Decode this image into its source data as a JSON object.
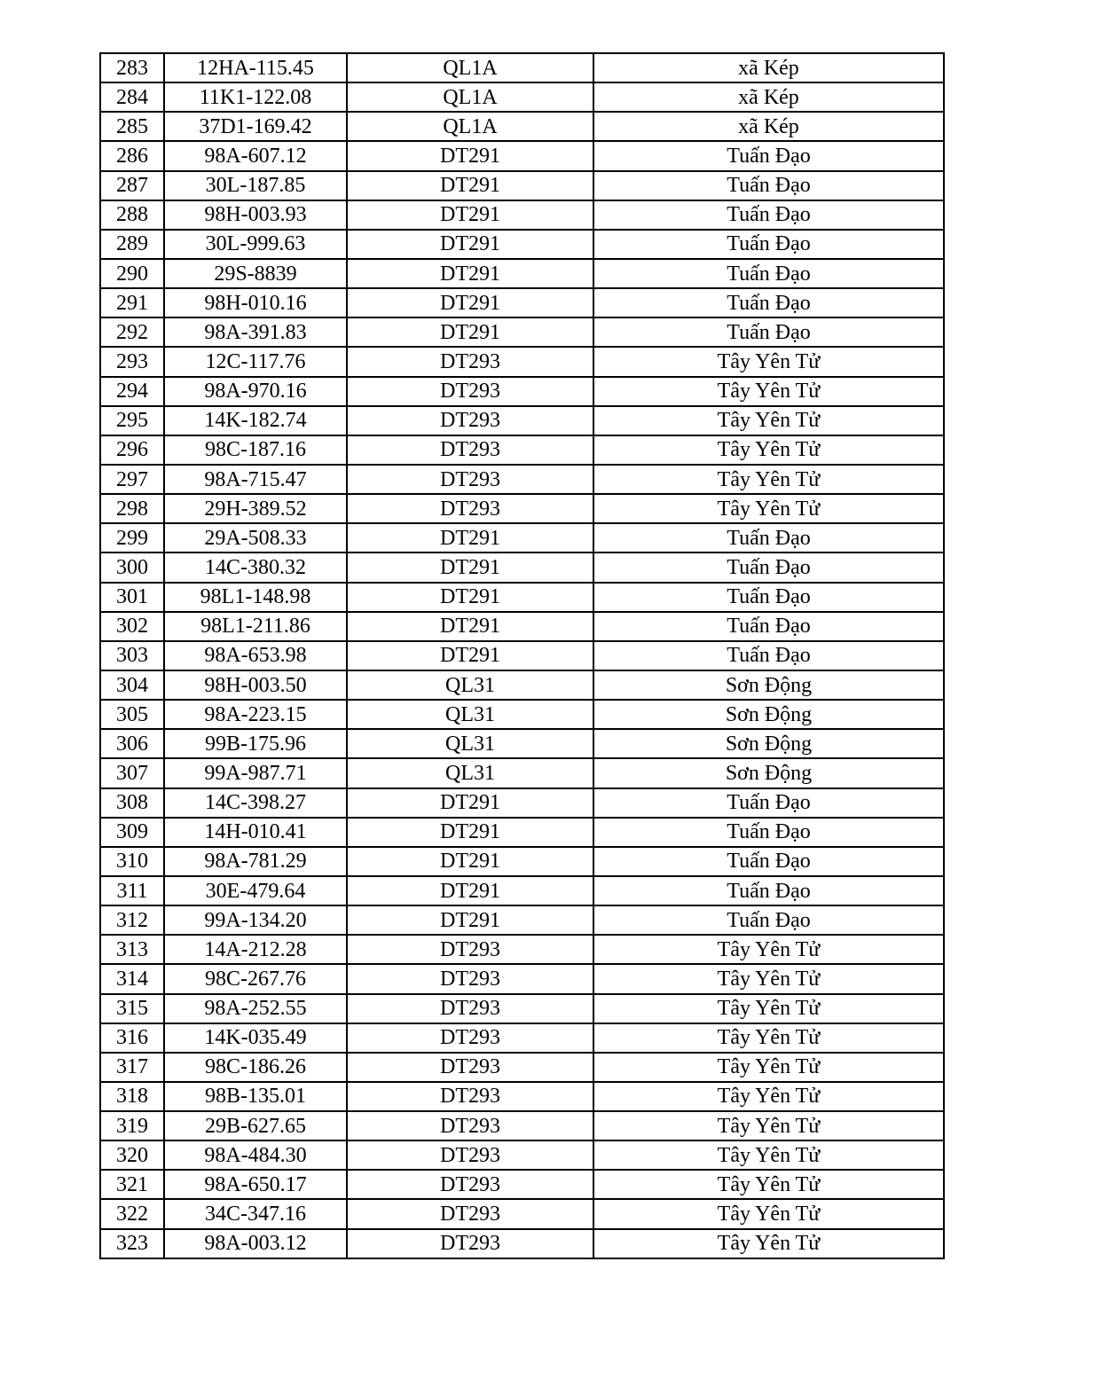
{
  "rows": [
    [
      "283",
      "12HA-115.45",
      "QL1A",
      "xã Kép"
    ],
    [
      "284",
      "11K1-122.08",
      "QL1A",
      "xã Kép"
    ],
    [
      "285",
      "37D1-169.42",
      "QL1A",
      "xã Kép"
    ],
    [
      "286",
      "98A-607.12",
      "DT291",
      "Tuấn Đạo"
    ],
    [
      "287",
      "30L-187.85",
      "DT291",
      "Tuấn Đạo"
    ],
    [
      "288",
      "98H-003.93",
      "DT291",
      "Tuấn Đạo"
    ],
    [
      "289",
      "30L-999.63",
      "DT291",
      "Tuấn Đạo"
    ],
    [
      "290",
      "29S-8839",
      "DT291",
      "Tuấn Đạo"
    ],
    [
      "291",
      "98H-010.16",
      "DT291",
      "Tuấn Đạo"
    ],
    [
      "292",
      "98A-391.83",
      "DT291",
      "Tuấn Đạo"
    ],
    [
      "293",
      "12C-117.76",
      "DT293",
      "Tây Yên Tử"
    ],
    [
      "294",
      "98A-970.16",
      "DT293",
      "Tây Yên Tử"
    ],
    [
      "295",
      "14K-182.74",
      "DT293",
      "Tây Yên Tử"
    ],
    [
      "296",
      "98C-187.16",
      "DT293",
      "Tây Yên Tử"
    ],
    [
      "297",
      "98A-715.47",
      "DT293",
      "Tây Yên Tử"
    ],
    [
      "298",
      "29H-389.52",
      "DT293",
      "Tây Yên Tử"
    ],
    [
      "299",
      "29A-508.33",
      "DT291",
      "Tuấn Đạo"
    ],
    [
      "300",
      "14C-380.32",
      "DT291",
      "Tuấn Đạo"
    ],
    [
      "301",
      "98L1-148.98",
      "DT291",
      "Tuấn Đạo"
    ],
    [
      "302",
      "98L1-211.86",
      "DT291",
      "Tuấn Đạo"
    ],
    [
      "303",
      "98A-653.98",
      "DT291",
      "Tuấn Đạo"
    ],
    [
      "304",
      "98H-003.50",
      "QL31",
      "Sơn Động"
    ],
    [
      "305",
      "98A-223.15",
      "QL31",
      "Sơn Động"
    ],
    [
      "306",
      "99B-175.96",
      "QL31",
      "Sơn Động"
    ],
    [
      "307",
      "99A-987.71",
      "QL31",
      "Sơn Động"
    ],
    [
      "308",
      "14C-398.27",
      "DT291",
      "Tuấn Đạo"
    ],
    [
      "309",
      "14H-010.41",
      "DT291",
      "Tuấn Đạo"
    ],
    [
      "310",
      "98A-781.29",
      "DT291",
      "Tuấn Đạo"
    ],
    [
      "311",
      "30E-479.64",
      "DT291",
      "Tuấn Đạo"
    ],
    [
      "312",
      "99A-134.20",
      "DT291",
      "Tuấn Đạo"
    ],
    [
      "313",
      "14A-212.28",
      "DT293",
      "Tây Yên Tử"
    ],
    [
      "314",
      "98C-267.76",
      "DT293",
      "Tây Yên Tử"
    ],
    [
      "315",
      "98A-252.55",
      "DT293",
      "Tây Yên Tử"
    ],
    [
      "316",
      "14K-035.49",
      "DT293",
      "Tây Yên Tử"
    ],
    [
      "317",
      "98C-186.26",
      "DT293",
      "Tây Yên Tử"
    ],
    [
      "318",
      "98B-135.01",
      "DT293",
      "Tây Yên Tử"
    ],
    [
      "319",
      "29B-627.65",
      "DT293",
      "Tây Yên Tử"
    ],
    [
      "320",
      "98A-484.30",
      "DT293",
      "Tây Yên Tử"
    ],
    [
      "321",
      "98A-650.17",
      "DT293",
      "Tây Yên Tử"
    ],
    [
      "322",
      "34C-347.16",
      "DT293",
      "Tây Yên Tử"
    ],
    [
      "323",
      "98A-003.12",
      "DT293",
      "Tây Yên Tử"
    ]
  ]
}
